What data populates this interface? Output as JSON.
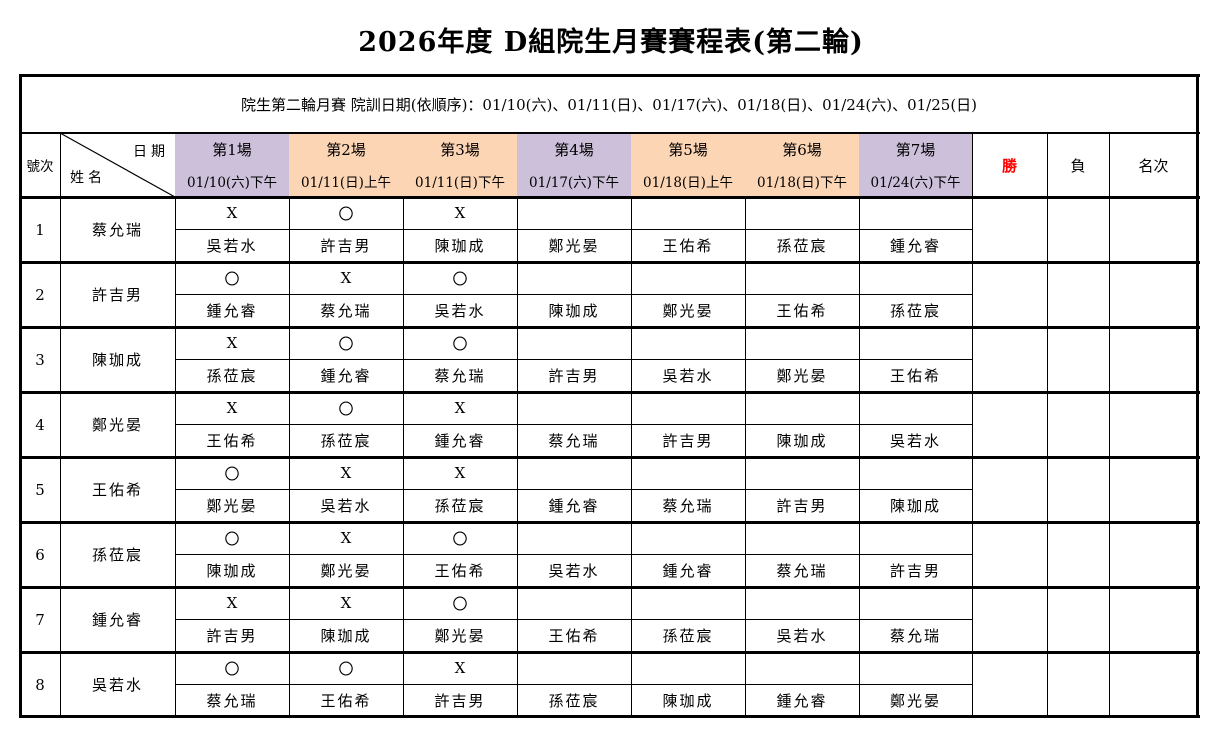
{
  "title": "2026年度 D組院生月賽賽程表(第二輪)",
  "subtitle": "院生第二輪月賽 院訓日期(依順序)：01/10(六)、01/11(日)、01/17(六)、01/18(日)、01/24(六)、01/25(日)",
  "header": {
    "no_label": "號次",
    "date_label": "日期",
    "name_label": "姓名",
    "win_label": "勝",
    "loss_label": "負",
    "rank_label": "名次",
    "matches": [
      {
        "label": "第1場",
        "date": "01/10(六)下午",
        "color": "#ccc0da"
      },
      {
        "label": "第2場",
        "date": "01/11(日)上午",
        "color": "#fcd5b4"
      },
      {
        "label": "第3場",
        "date": "01/11(日)下午",
        "color": "#fcd5b4"
      },
      {
        "label": "第4場",
        "date": "01/17(六)下午",
        "color": "#ccc0da"
      },
      {
        "label": "第5場",
        "date": "01/18(日)上午",
        "color": "#fcd5b4"
      },
      {
        "label": "第6場",
        "date": "01/18(日)下午",
        "color": "#fcd5b4"
      },
      {
        "label": "第7場",
        "date": "01/24(六)下午",
        "color": "#ccc0da"
      }
    ]
  },
  "colors": {
    "win_label": "#ff0000",
    "purple": "#ccc0da",
    "orange": "#fcd5b4"
  },
  "players": [
    {
      "no": "1",
      "name": "蔡允瑞",
      "results": [
        "X",
        "〇",
        "X",
        "",
        "",
        "",
        ""
      ],
      "opponents": [
        "吳若水",
        "許吉男",
        "陳珈成",
        "鄭光晏",
        "王佑希",
        "孫莅宸",
        "鍾允睿"
      ]
    },
    {
      "no": "2",
      "name": "許吉男",
      "results": [
        "〇",
        "X",
        "〇",
        "",
        "",
        "",
        ""
      ],
      "opponents": [
        "鍾允睿",
        "蔡允瑞",
        "吳若水",
        "陳珈成",
        "鄭光晏",
        "王佑希",
        "孫莅宸"
      ]
    },
    {
      "no": "3",
      "name": "陳珈成",
      "results": [
        "X",
        "〇",
        "〇",
        "",
        "",
        "",
        ""
      ],
      "opponents": [
        "孫莅宸",
        "鍾允睿",
        "蔡允瑞",
        "許吉男",
        "吳若水",
        "鄭光晏",
        "王佑希"
      ]
    },
    {
      "no": "4",
      "name": "鄭光晏",
      "results": [
        "X",
        "〇",
        "X",
        "",
        "",
        "",
        ""
      ],
      "opponents": [
        "王佑希",
        "孫莅宸",
        "鍾允睿",
        "蔡允瑞",
        "許吉男",
        "陳珈成",
        "吳若水"
      ]
    },
    {
      "no": "5",
      "name": "王佑希",
      "results": [
        "〇",
        "X",
        "X",
        "",
        "",
        "",
        ""
      ],
      "opponents": [
        "鄭光晏",
        "吳若水",
        "孫莅宸",
        "鍾允睿",
        "蔡允瑞",
        "許吉男",
        "陳珈成"
      ]
    },
    {
      "no": "6",
      "name": "孫莅宸",
      "results": [
        "〇",
        "X",
        "〇",
        "",
        "",
        "",
        ""
      ],
      "opponents": [
        "陳珈成",
        "鄭光晏",
        "王佑希",
        "吳若水",
        "鍾允睿",
        "蔡允瑞",
        "許吉男"
      ]
    },
    {
      "no": "7",
      "name": "鍾允睿",
      "results": [
        "X",
        "X",
        "〇",
        "",
        "",
        "",
        ""
      ],
      "opponents": [
        "許吉男",
        "陳珈成",
        "鄭光晏",
        "王佑希",
        "孫莅宸",
        "吳若水",
        "蔡允瑞"
      ]
    },
    {
      "no": "8",
      "name": "吳若水",
      "results": [
        "〇",
        "〇",
        "X",
        "",
        "",
        "",
        ""
      ],
      "opponents": [
        "蔡允瑞",
        "王佑希",
        "許吉男",
        "孫莅宸",
        "陳珈成",
        "鍾允睿",
        "鄭光晏"
      ]
    }
  ]
}
